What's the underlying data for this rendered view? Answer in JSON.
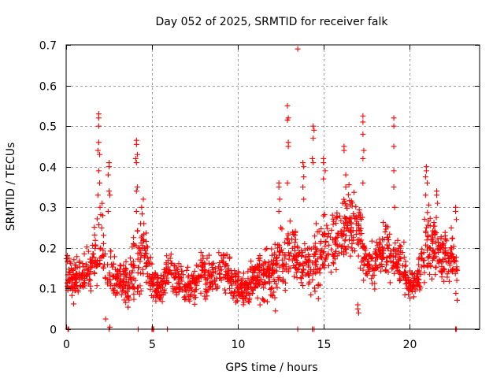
{
  "chart_data": {
    "type": "scatter",
    "title": "Day 052 of 2025, SRMTID for receiver falk",
    "xlabel": "GPS time / hours",
    "ylabel": "SRMTID / TECUs",
    "xlim": [
      0,
      24.1
    ],
    "ylim": [
      0,
      0.7
    ],
    "xticks": [
      0,
      5,
      10,
      15,
      20
    ],
    "xtick_labels": [
      "0",
      "5",
      "10",
      "15",
      "20"
    ],
    "yticks": [
      0,
      0.1,
      0.2,
      0.3,
      0.4,
      0.5,
      0.6,
      0.7
    ],
    "ytick_labels": [
      "0",
      "0.1",
      "0.2",
      "0.3",
      "0.4",
      "0.5",
      "0.6",
      "0.7"
    ],
    "grid": true,
    "legend": "none",
    "marker": "plus",
    "series_color": "#ff0000",
    "grid_color": "#a0a0a0",
    "series": [
      {
        "name": "SRMTID",
        "profile": {
          "hours": [
            0.0,
            0.5,
            1.0,
            1.5,
            1.8,
            2.0,
            2.3,
            2.6,
            3.0,
            3.5,
            4.0,
            4.2,
            4.5,
            5.0,
            5.5,
            6.0,
            6.5,
            7.0,
            7.5,
            8.0,
            8.5,
            9.0,
            9.5,
            10.0,
            10.5,
            11.0,
            11.5,
            12.0,
            12.5,
            13.0,
            13.5,
            14.0,
            14.5,
            15.0,
            15.5,
            16.0,
            16.5,
            17.0,
            17.5,
            18.0,
            18.5,
            19.0,
            19.5,
            20.0,
            20.5,
            21.0,
            21.5,
            22.0,
            22.5,
            22.8
          ],
          "median": [
            0.13,
            0.12,
            0.13,
            0.15,
            0.2,
            0.22,
            0.16,
            0.14,
            0.12,
            0.11,
            0.14,
            0.18,
            0.2,
            0.12,
            0.1,
            0.15,
            0.12,
            0.1,
            0.12,
            0.14,
            0.13,
            0.15,
            0.14,
            0.1,
            0.1,
            0.13,
            0.13,
            0.14,
            0.17,
            0.18,
            0.19,
            0.15,
            0.17,
            0.2,
            0.22,
            0.24,
            0.26,
            0.25,
            0.16,
            0.17,
            0.2,
            0.18,
            0.17,
            0.11,
            0.12,
            0.22,
            0.2,
            0.18,
            0.18,
            0.12
          ],
          "spread": [
            0.04,
            0.04,
            0.04,
            0.05,
            0.08,
            0.1,
            0.06,
            0.05,
            0.04,
            0.04,
            0.07,
            0.09,
            0.06,
            0.04,
            0.03,
            0.04,
            0.04,
            0.03,
            0.04,
            0.04,
            0.04,
            0.05,
            0.04,
            0.03,
            0.03,
            0.04,
            0.05,
            0.05,
            0.06,
            0.06,
            0.07,
            0.05,
            0.06,
            0.06,
            0.06,
            0.07,
            0.08,
            0.07,
            0.05,
            0.05,
            0.06,
            0.05,
            0.05,
            0.03,
            0.03,
            0.08,
            0.06,
            0.05,
            0.05,
            0.04
          ]
        },
        "spikes": [
          [
            1.9,
            0.53
          ],
          [
            1.9,
            0.52
          ],
          [
            1.9,
            0.5
          ],
          [
            1.9,
            0.46
          ],
          [
            1.85,
            0.44
          ],
          [
            1.95,
            0.43
          ],
          [
            1.9,
            0.39
          ],
          [
            1.95,
            0.36
          ],
          [
            1.85,
            0.33
          ],
          [
            2.1,
            0.31
          ],
          [
            2.5,
            0.41
          ],
          [
            2.5,
            0.4
          ],
          [
            2.45,
            0.38
          ],
          [
            2.5,
            0.34
          ],
          [
            2.55,
            0.33
          ],
          [
            2.45,
            0.29
          ],
          [
            2.3,
            0.025
          ],
          [
            2.55,
            0.005
          ],
          [
            4.1,
            0.465
          ],
          [
            4.1,
            0.455
          ],
          [
            4.15,
            0.43
          ],
          [
            4.05,
            0.42
          ],
          [
            4.1,
            0.41
          ],
          [
            4.15,
            0.35
          ],
          [
            4.1,
            0.34
          ],
          [
            4.1,
            0.29
          ],
          [
            4.5,
            0.32
          ],
          [
            4.4,
            0.3
          ],
          [
            12.4,
            0.36
          ],
          [
            12.4,
            0.35
          ],
          [
            12.45,
            0.32
          ],
          [
            12.4,
            0.29
          ],
          [
            12.9,
            0.55
          ],
          [
            12.95,
            0.52
          ],
          [
            12.9,
            0.515
          ],
          [
            12.95,
            0.46
          ],
          [
            12.95,
            0.45
          ],
          [
            12.9,
            0.36
          ],
          [
            13.5,
            0.69
          ],
          [
            13.8,
            0.41
          ],
          [
            13.85,
            0.4
          ],
          [
            13.85,
            0.375
          ],
          [
            13.8,
            0.35
          ],
          [
            13.85,
            0.32
          ],
          [
            14.4,
            0.5
          ],
          [
            14.45,
            0.49
          ],
          [
            14.4,
            0.47
          ],
          [
            14.35,
            0.42
          ],
          [
            14.4,
            0.41
          ],
          [
            15.0,
            0.42
          ],
          [
            15.0,
            0.41
          ],
          [
            15.1,
            0.39
          ],
          [
            15.0,
            0.37
          ],
          [
            16.2,
            0.45
          ],
          [
            16.2,
            0.44
          ],
          [
            16.3,
            0.38
          ],
          [
            16.3,
            0.35
          ],
          [
            17.3,
            0.525
          ],
          [
            17.3,
            0.51
          ],
          [
            17.3,
            0.48
          ],
          [
            17.35,
            0.44
          ],
          [
            17.3,
            0.42
          ],
          [
            17.3,
            0.36
          ],
          [
            17.0,
            0.06
          ],
          [
            17.0,
            0.05
          ],
          [
            17.05,
            0.04
          ],
          [
            19.1,
            0.52
          ],
          [
            19.1,
            0.5
          ],
          [
            19.1,
            0.45
          ],
          [
            19.1,
            0.39
          ],
          [
            19.1,
            0.35
          ],
          [
            19.15,
            0.3
          ],
          [
            21.0,
            0.4
          ],
          [
            21.0,
            0.39
          ],
          [
            20.95,
            0.375
          ],
          [
            21.05,
            0.36
          ],
          [
            20.95,
            0.33
          ],
          [
            21.6,
            0.34
          ],
          [
            21.6,
            0.33
          ],
          [
            21.65,
            0.31
          ],
          [
            22.7,
            0.3
          ],
          [
            22.7,
            0.29
          ],
          [
            22.75,
            0.27
          ],
          [
            14.7,
            0.075
          ],
          [
            12.2,
            0.045
          ],
          [
            11.3,
            0.06
          ]
        ],
        "zeros": [
          0.1,
          0.15,
          2.5,
          4.2,
          5.0,
          5.05,
          5.1,
          5.9,
          13.5,
          14.35,
          14.45,
          22.7,
          22.75
        ]
      }
    ]
  }
}
